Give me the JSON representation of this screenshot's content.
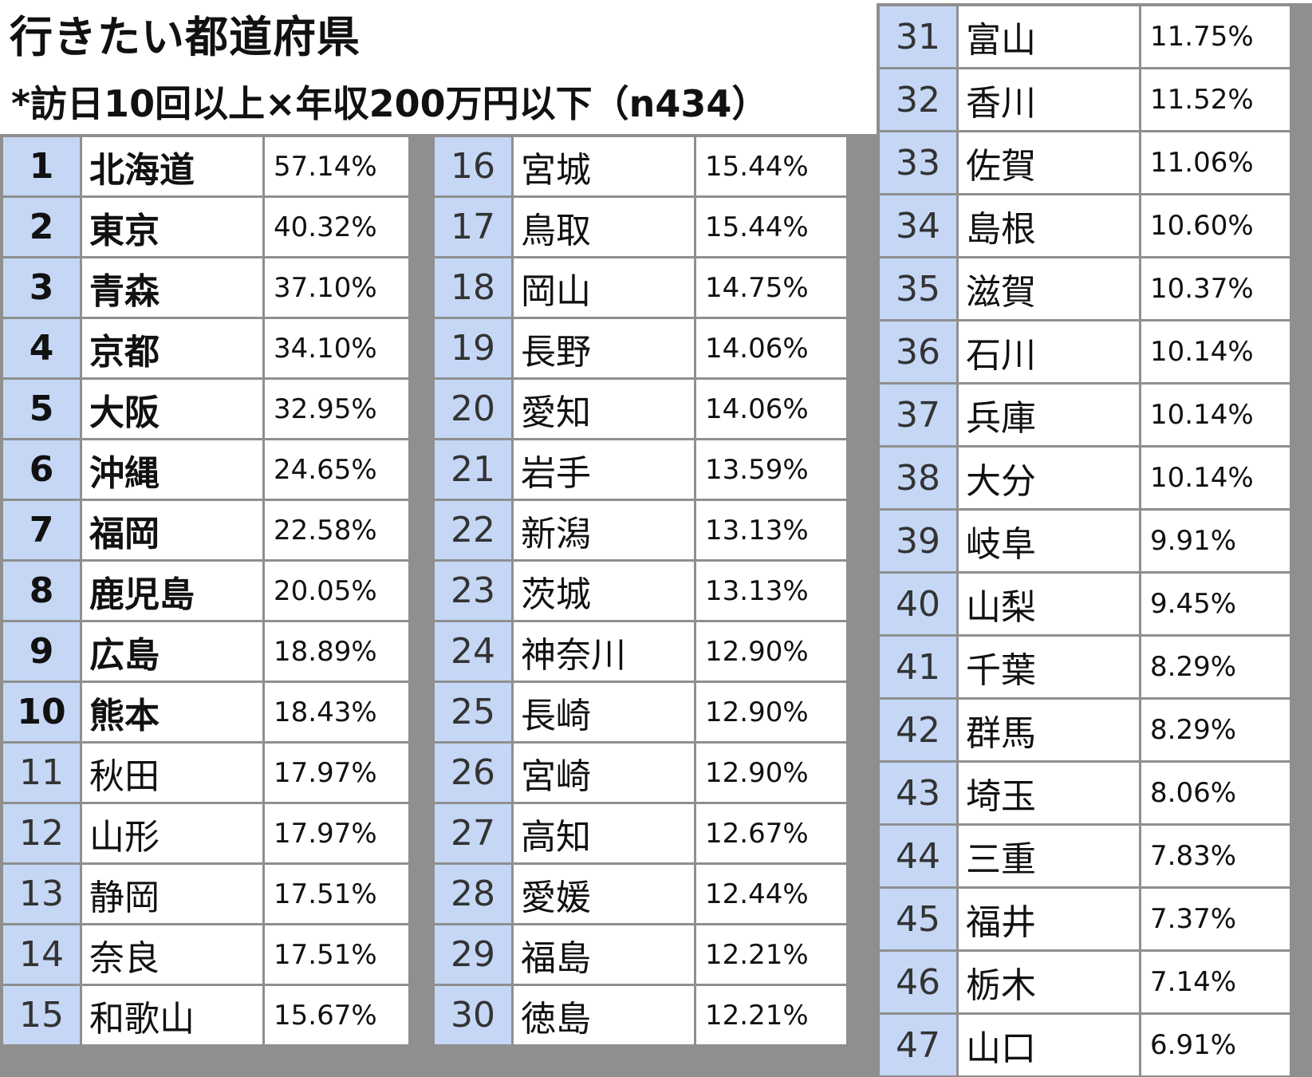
{
  "title": "行きたい都道府県",
  "subtitle": "*訪日10回以上×年収200万円以下（n434）",
  "colors": {
    "rank_cell_background": "#c5d7f5",
    "grid_border": "#8f8f8f",
    "value_cell_background": "#ffffff"
  },
  "columns": [
    {
      "rows": [
        {
          "rank": "1",
          "prefecture": "北海道",
          "percent": "57.14%",
          "bold": true
        },
        {
          "rank": "2",
          "prefecture": "東京",
          "percent": "40.32%",
          "bold": true
        },
        {
          "rank": "3",
          "prefecture": "青森",
          "percent": "37.10%",
          "bold": true
        },
        {
          "rank": "4",
          "prefecture": "京都",
          "percent": "34.10%",
          "bold": true
        },
        {
          "rank": "5",
          "prefecture": "大阪",
          "percent": "32.95%",
          "bold": true
        },
        {
          "rank": "6",
          "prefecture": "沖縄",
          "percent": "24.65%",
          "bold": true
        },
        {
          "rank": "7",
          "prefecture": "福岡",
          "percent": "22.58%",
          "bold": true
        },
        {
          "rank": "8",
          "prefecture": "鹿児島",
          "percent": "20.05%",
          "bold": true
        },
        {
          "rank": "9",
          "prefecture": "広島",
          "percent": "18.89%",
          "bold": true
        },
        {
          "rank": "10",
          "prefecture": "熊本",
          "percent": "18.43%",
          "bold": true
        },
        {
          "rank": "11",
          "prefecture": "秋田",
          "percent": "17.97%",
          "bold": false
        },
        {
          "rank": "12",
          "prefecture": "山形",
          "percent": "17.97%",
          "bold": false
        },
        {
          "rank": "13",
          "prefecture": "静岡",
          "percent": "17.51%",
          "bold": false
        },
        {
          "rank": "14",
          "prefecture": "奈良",
          "percent": "17.51%",
          "bold": false
        },
        {
          "rank": "15",
          "prefecture": "和歌山",
          "percent": "15.67%",
          "bold": false
        }
      ]
    },
    {
      "rows": [
        {
          "rank": "16",
          "prefecture": "宮城",
          "percent": "15.44%",
          "bold": false
        },
        {
          "rank": "17",
          "prefecture": "鳥取",
          "percent": "15.44%",
          "bold": false
        },
        {
          "rank": "18",
          "prefecture": "岡山",
          "percent": "14.75%",
          "bold": false
        },
        {
          "rank": "19",
          "prefecture": "長野",
          "percent": "14.06%",
          "bold": false
        },
        {
          "rank": "20",
          "prefecture": "愛知",
          "percent": "14.06%",
          "bold": false
        },
        {
          "rank": "21",
          "prefecture": "岩手",
          "percent": "13.59%",
          "bold": false
        },
        {
          "rank": "22",
          "prefecture": "新潟",
          "percent": "13.13%",
          "bold": false
        },
        {
          "rank": "23",
          "prefecture": "茨城",
          "percent": "13.13%",
          "bold": false
        },
        {
          "rank": "24",
          "prefecture": "神奈川",
          "percent": "12.90%",
          "bold": false
        },
        {
          "rank": "25",
          "prefecture": "長崎",
          "percent": "12.90%",
          "bold": false
        },
        {
          "rank": "26",
          "prefecture": "宮崎",
          "percent": "12.90%",
          "bold": false
        },
        {
          "rank": "27",
          "prefecture": "高知",
          "percent": "12.67%",
          "bold": false
        },
        {
          "rank": "28",
          "prefecture": "愛媛",
          "percent": "12.44%",
          "bold": false
        },
        {
          "rank": "29",
          "prefecture": "福島",
          "percent": "12.21%",
          "bold": false
        },
        {
          "rank": "30",
          "prefecture": "徳島",
          "percent": "12.21%",
          "bold": false
        }
      ]
    },
    {
      "rows": [
        {
          "rank": "31",
          "prefecture": "富山",
          "percent": "11.75%",
          "bold": false
        },
        {
          "rank": "32",
          "prefecture": "香川",
          "percent": "11.52%",
          "bold": false
        },
        {
          "rank": "33",
          "prefecture": "佐賀",
          "percent": "11.06%",
          "bold": false
        },
        {
          "rank": "34",
          "prefecture": "島根",
          "percent": "10.60%",
          "bold": false
        },
        {
          "rank": "35",
          "prefecture": "滋賀",
          "percent": "10.37%",
          "bold": false
        },
        {
          "rank": "36",
          "prefecture": "石川",
          "percent": "10.14%",
          "bold": false
        },
        {
          "rank": "37",
          "prefecture": "兵庫",
          "percent": "10.14%",
          "bold": false
        },
        {
          "rank": "38",
          "prefecture": "大分",
          "percent": "10.14%",
          "bold": false
        },
        {
          "rank": "39",
          "prefecture": "岐阜",
          "percent": "9.91%",
          "bold": false
        },
        {
          "rank": "40",
          "prefecture": "山梨",
          "percent": "9.45%",
          "bold": false
        },
        {
          "rank": "41",
          "prefecture": "千葉",
          "percent": "8.29%",
          "bold": false
        },
        {
          "rank": "42",
          "prefecture": "群馬",
          "percent": "8.29%",
          "bold": false
        },
        {
          "rank": "43",
          "prefecture": "埼玉",
          "percent": "8.06%",
          "bold": false
        },
        {
          "rank": "44",
          "prefecture": "三重",
          "percent": "7.83%",
          "bold": false
        },
        {
          "rank": "45",
          "prefecture": "福井",
          "percent": "7.37%",
          "bold": false
        },
        {
          "rank": "46",
          "prefecture": "栃木",
          "percent": "7.14%",
          "bold": false
        },
        {
          "rank": "47",
          "prefecture": "山口",
          "percent": "6.91%",
          "bold": false
        }
      ]
    }
  ]
}
